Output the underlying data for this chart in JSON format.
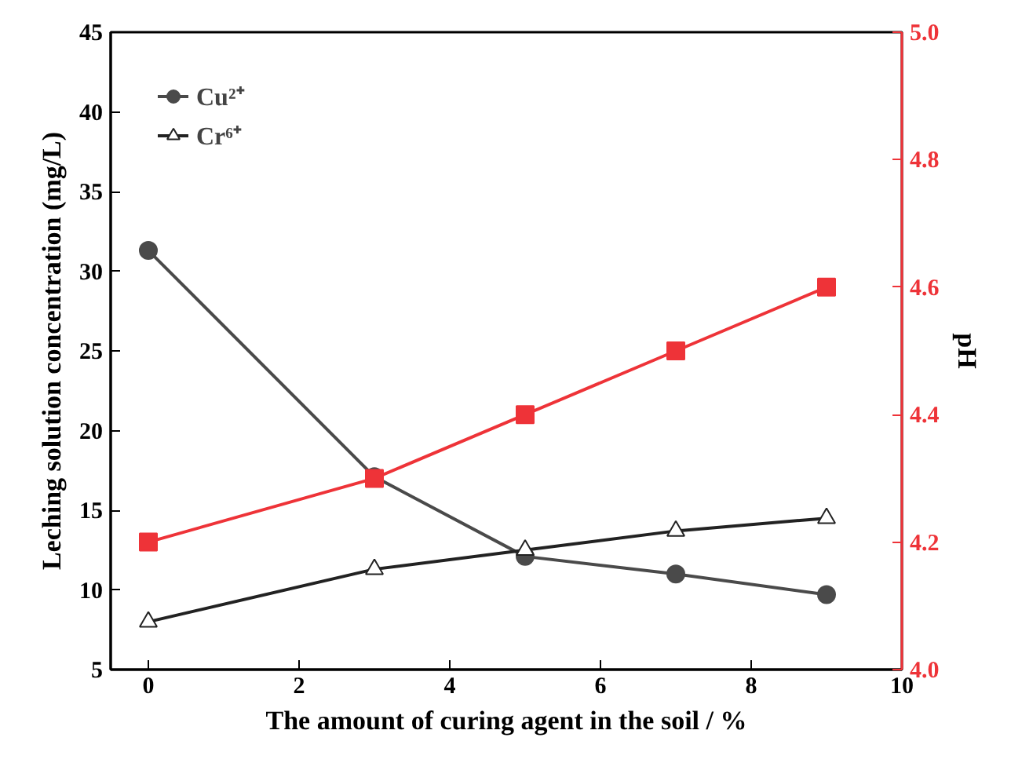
{
  "chart_data": {
    "type": "line",
    "xlabel": "The amount of curing agent in the soil / %",
    "ylabel": "Leching solution concentration (mg/L)",
    "y2label": "pH",
    "x": [
      0,
      3,
      5,
      7,
      9
    ],
    "series": [
      {
        "name": "Cu²⁺",
        "color": "#4a4a4a",
        "marker": "circle",
        "values": [
          31.3,
          17.1,
          12.1,
          11.0,
          9.7
        ]
      },
      {
        "name": "Cr⁶⁺",
        "color": "#222222",
        "marker": "triangle",
        "values": [
          8.0,
          11.3,
          12.5,
          13.7,
          14.5
        ]
      },
      {
        "color": "#ee3338",
        "marker": "square",
        "axis": "y2",
        "values": [
          4.2,
          4.3,
          4.4,
          4.5,
          4.6
        ]
      }
    ],
    "xlim": [
      -0.5,
      10
    ],
    "xticks": [
      0,
      2,
      4,
      6,
      8,
      10
    ],
    "ylim": [
      5,
      45
    ],
    "yticks": [
      5,
      10,
      15,
      20,
      25,
      30,
      35,
      40,
      45
    ],
    "y2lim": [
      4.0,
      5.0
    ],
    "y2ticks": [
      {
        "value": 4.0,
        "label": "4.0"
      },
      4.2,
      4.4,
      4.6,
      4.8,
      {
        "value": 5.0,
        "label": "5.0"
      }
    ],
    "grid": false,
    "legend": "top left"
  }
}
